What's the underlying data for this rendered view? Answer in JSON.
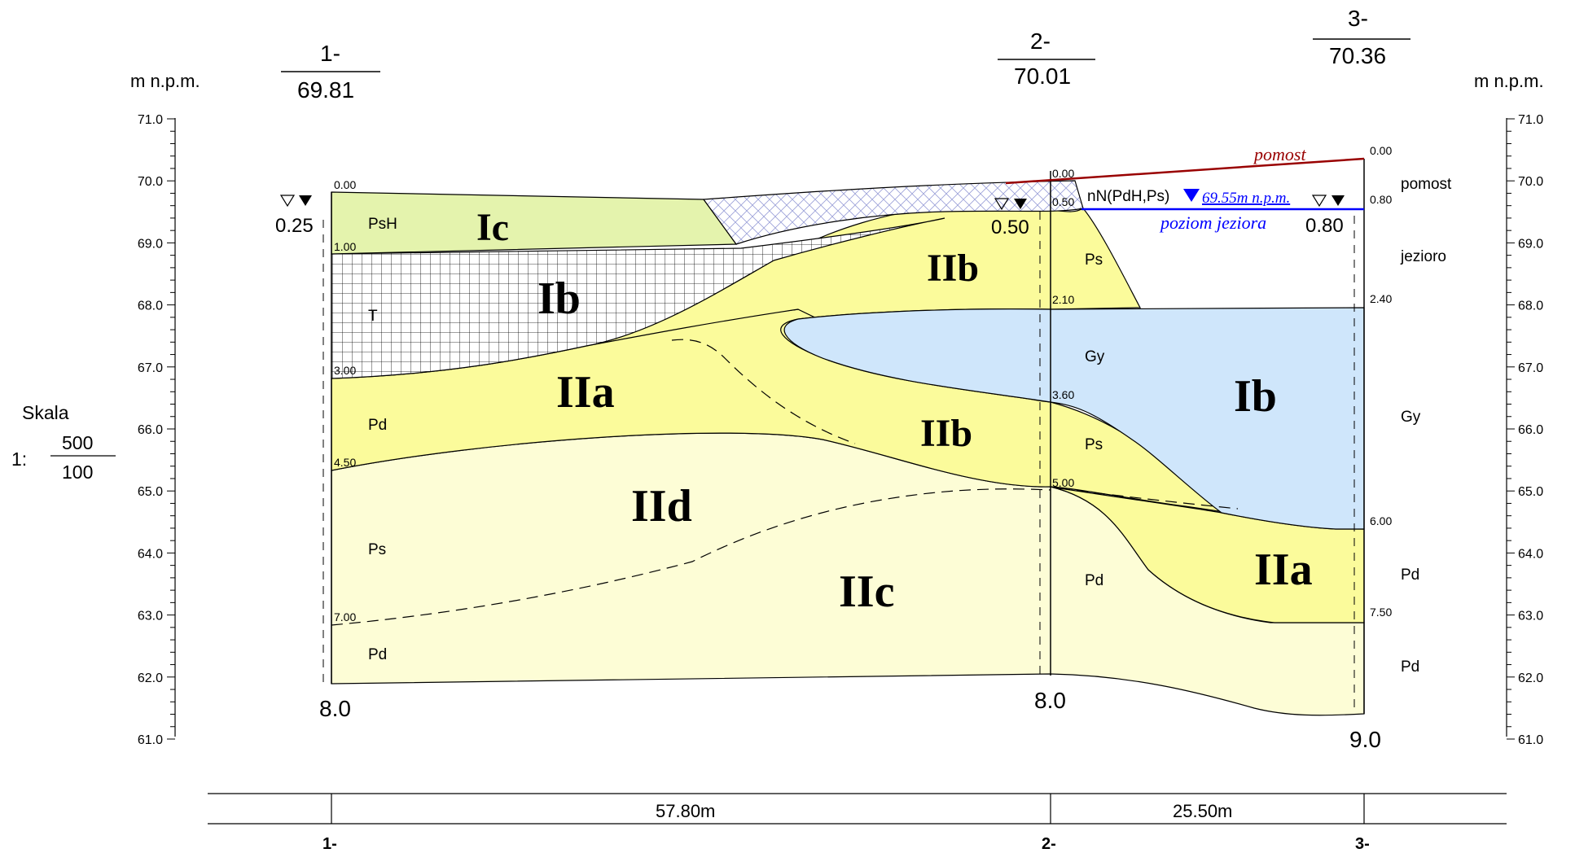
{
  "units_label": "m n.p.m.",
  "scale": {
    "label": "Skala",
    "prefix": "1:",
    "horizontal": "500",
    "vertical": "100"
  },
  "axis_ticks": [
    "71.0",
    "70.0",
    "69.0",
    "68.0",
    "67.0",
    "66.0",
    "65.0",
    "64.0",
    "63.0",
    "62.0",
    "61.0"
  ],
  "boreholes": [
    {
      "name": "1-",
      "elevation": "69.81",
      "depth": "8.0",
      "water": "0.25",
      "bottom_label": "1-"
    },
    {
      "name": "2-",
      "elevation": "70.01",
      "depth": "8.0",
      "water": "0.50",
      "bottom_label": "2-"
    },
    {
      "name": "3-",
      "elevation": "70.36",
      "depth": "9.0",
      "water": "0.80",
      "bottom_label": "3-"
    }
  ],
  "depth_marks": {
    "bh1": [
      "0.00",
      "1.00",
      "3.00",
      "4.50",
      "7.00"
    ],
    "bh2": [
      "0.00",
      "0.50",
      "2.10",
      "3.60",
      "5.00"
    ],
    "bh3": [
      "0.00",
      "0.80",
      "2.40",
      "6.00",
      "7.50"
    ]
  },
  "soil_symbols": {
    "bh1": [
      "PsH",
      "T",
      "Pd",
      "Ps",
      "Pd"
    ],
    "bh2": [
      "Ps",
      "Gy",
      "Ps",
      "Pd"
    ],
    "bh3": [
      "pomost",
      "jezioro",
      "Gy",
      "Pd",
      "Pd"
    ]
  },
  "layers": {
    "Ic": "Ic",
    "Ib_left": "Ib",
    "Ib_right": "Ib",
    "IIa_left": "IIa",
    "IIa_right": "IIa",
    "IIb_top": "IIb",
    "IIb_mid": "IIb",
    "IIc": "IIc",
    "IId": "IId"
  },
  "annotations": {
    "pomost": "pomost",
    "lake_level": "poziom jeziora",
    "water_level_note": "nN(PdH,Ps)",
    "water_level_value": "69.55m n.p.m."
  },
  "distances": [
    "57.80m",
    "25.50m"
  ],
  "colors": {
    "yellow": "#fbfb9b",
    "pale_yellow": "#fdfdd6",
    "green": "#e4f3ad",
    "blue": "#cfe6fb",
    "pomost": "#990000",
    "water": "#0000ff"
  }
}
